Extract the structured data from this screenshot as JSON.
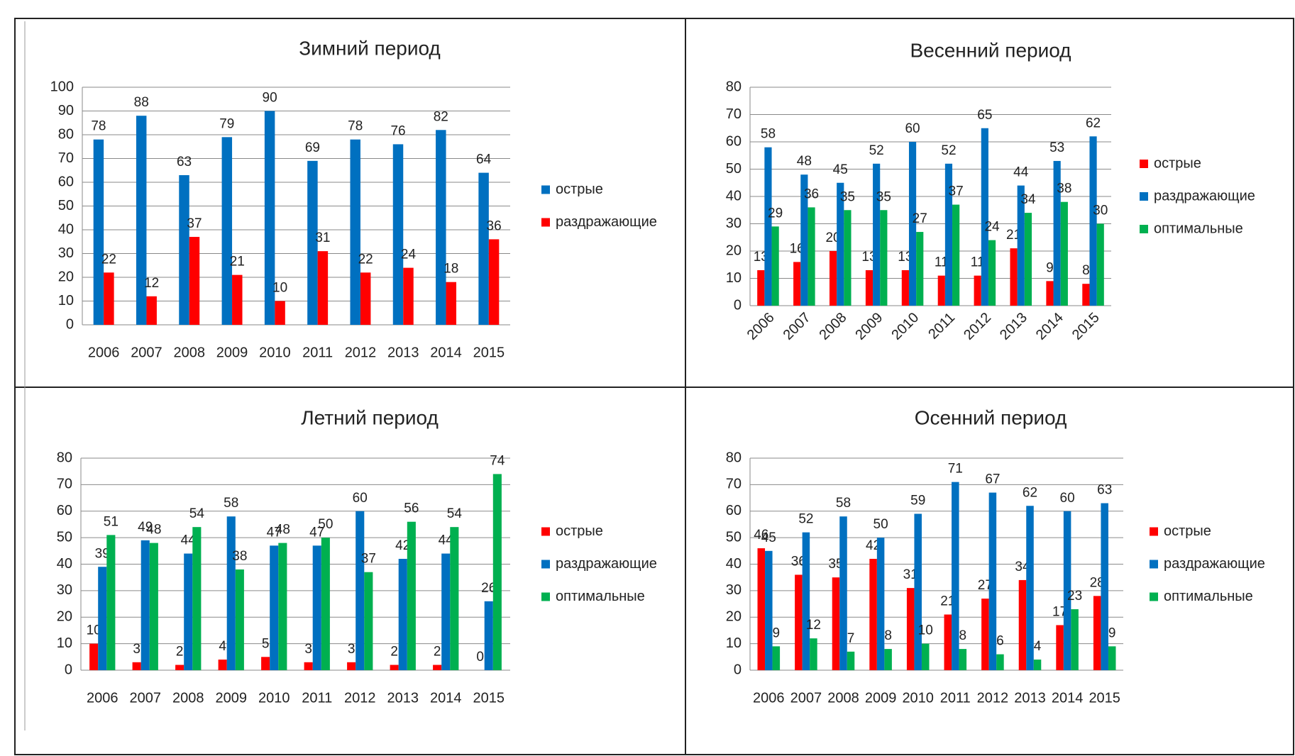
{
  "chart_data": [
    {
      "type": "bar",
      "title": "Зимний период",
      "categories": [
        "2006",
        "2007",
        "2008",
        "2009",
        "2010",
        "2011",
        "2012",
        "2013",
        "2014",
        "2015"
      ],
      "series": [
        {
          "name": "острые",
          "color": "#0070c0",
          "values": [
            78,
            88,
            63,
            79,
            90,
            69,
            78,
            76,
            82,
            64
          ]
        },
        {
          "name": "раздражающие",
          "color": "#ff0000",
          "values": [
            22,
            12,
            37,
            21,
            10,
            31,
            22,
            24,
            18,
            36
          ]
        }
      ],
      "ylim": [
        0,
        100
      ],
      "yticks": [
        0,
        10,
        20,
        30,
        40,
        50,
        60,
        70,
        80,
        90,
        100
      ],
      "grid": true,
      "legend": "right"
    },
    {
      "type": "bar",
      "title": "Весенний период",
      "categories": [
        "2006",
        "2007",
        "2008",
        "2009",
        "2010",
        "2011",
        "2012",
        "2013",
        "2014",
        "2015"
      ],
      "series": [
        {
          "name": "острые",
          "color": "#ff0000",
          "values": [
            13,
            16,
            20,
            13,
            13,
            11,
            11,
            21,
            9,
            8
          ]
        },
        {
          "name": "раздражающие",
          "color": "#0070c0",
          "values": [
            58,
            48,
            45,
            52,
            60,
            52,
            65,
            44,
            53,
            62
          ]
        },
        {
          "name": "оптимальные",
          "color": "#00b050",
          "values": [
            29,
            36,
            35,
            35,
            27,
            37,
            24,
            34,
            38,
            30
          ]
        }
      ],
      "ylim": [
        0,
        80
      ],
      "yticks": [
        0,
        10,
        20,
        30,
        40,
        50,
        60,
        70,
        80
      ],
      "grid": true,
      "legend": "right",
      "xlabel_rotation": -45
    },
    {
      "type": "bar",
      "title": "Летний период",
      "categories": [
        "2006",
        "2007",
        "2008",
        "2009",
        "2010",
        "2011",
        "2012",
        "2013",
        "2014",
        "2015"
      ],
      "series": [
        {
          "name": "острые",
          "color": "#ff0000",
          "values": [
            10,
            3,
            2,
            4,
            5,
            3,
            3,
            2,
            2,
            0
          ]
        },
        {
          "name": "раздражающие",
          "color": "#0070c0",
          "values": [
            39,
            49,
            44,
            58,
            47,
            47,
            60,
            42,
            44,
            26
          ]
        },
        {
          "name": "оптимальные",
          "color": "#00b050",
          "values": [
            51,
            48,
            54,
            38,
            48,
            50,
            37,
            56,
            54,
            74
          ]
        }
      ],
      "ylim": [
        0,
        80
      ],
      "yticks": [
        0,
        10,
        20,
        30,
        40,
        50,
        60,
        70,
        80
      ],
      "grid": true,
      "legend": "right"
    },
    {
      "type": "bar",
      "title": "Осенний период",
      "categories": [
        "2006",
        "2007",
        "2008",
        "2009",
        "2010",
        "2011",
        "2012",
        "2013",
        "2014",
        "2015"
      ],
      "series": [
        {
          "name": "острые",
          "color": "#ff0000",
          "values": [
            46,
            36,
            35,
            42,
            31,
            21,
            27,
            34,
            17,
            28
          ]
        },
        {
          "name": "раздражающие",
          "color": "#0070c0",
          "values": [
            45,
            52,
            58,
            50,
            59,
            71,
            67,
            62,
            60,
            63
          ]
        },
        {
          "name": "оптимальные",
          "color": "#00b050",
          "values": [
            9,
            12,
            7,
            8,
            10,
            8,
            6,
            4,
            23,
            9
          ]
        }
      ],
      "ylim": [
        0,
        80
      ],
      "yticks": [
        0,
        10,
        20,
        30,
        40,
        50,
        60,
        70,
        80
      ],
      "grid": true,
      "legend": "right"
    }
  ]
}
